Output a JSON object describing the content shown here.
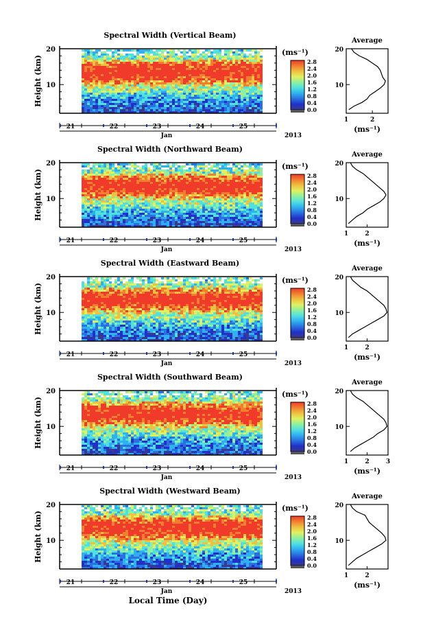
{
  "figure": {
    "x_axis_title": "Local Time (Day)",
    "month_label": "Jan",
    "year_label": "2013",
    "unit_label": "(ms⁻¹)",
    "colorbar_ticks": [
      "0.0",
      "0.4",
      "0.8",
      "1.2",
      "1.6",
      "2.0",
      "2.4",
      "2.8"
    ],
    "avg_title": "Average",
    "avg_xlabel": "(ms⁻¹)",
    "ylabel": "Height (km)",
    "colormap": [
      "#3a3a8c",
      "#2030c8",
      "#2a70e0",
      "#30b0f0",
      "#50e0e0",
      "#90f0a0",
      "#e0f060",
      "#f0c040",
      "#f08030",
      "#f03a2a"
    ]
  },
  "chart_data": [
    {
      "type": "heatmap",
      "title": "Spectral Width (Vertical Beam)",
      "ylabel": "Height (km)",
      "x_ticks": [
        "21",
        "22",
        "23",
        "24",
        "25"
      ],
      "y_ticks": [
        "10",
        "20"
      ],
      "ylim": [
        2,
        20
      ],
      "clim": [
        0,
        2.8
      ],
      "average": {
        "title": "Average",
        "xlabel": "(ms⁻¹)",
        "x_ticks": [
          "1",
          "2"
        ],
        "xlim": [
          1,
          2.6
        ],
        "height": [
          3,
          4,
          5,
          6,
          7,
          8,
          9,
          10,
          11,
          12,
          13,
          14,
          15,
          16,
          17,
          18,
          19,
          20
        ],
        "value": [
          1.1,
          1.3,
          1.6,
          1.8,
          1.9,
          2.1,
          2.3,
          2.45,
          2.5,
          2.4,
          2.35,
          2.3,
          2.2,
          2.0,
          1.8,
          1.5,
          1.3,
          1.2
        ]
      }
    },
    {
      "type": "heatmap",
      "title": "Spectral Width (Northward Beam)",
      "ylabel": "Height (km)",
      "x_ticks": [
        "21",
        "22",
        "23",
        "24",
        "25"
      ],
      "y_ticks": [
        "10",
        "20"
      ],
      "ylim": [
        2,
        20
      ],
      "clim": [
        0,
        2.8
      ],
      "average": {
        "title": "Average",
        "xlabel": "(ms⁻¹)",
        "x_ticks": [
          "1",
          "2"
        ],
        "xlim": [
          1,
          3
        ],
        "height": [
          3,
          4,
          5,
          6,
          7,
          8,
          9,
          10,
          11,
          12,
          13,
          14,
          15,
          16,
          17,
          18,
          19,
          20
        ],
        "value": [
          1.1,
          1.3,
          1.5,
          1.8,
          2.0,
          2.3,
          2.6,
          2.8,
          2.9,
          2.8,
          2.6,
          2.4,
          2.2,
          2.0,
          1.8,
          1.5,
          1.3,
          1.2
        ]
      }
    },
    {
      "type": "heatmap",
      "title": "Spectral Width (Eastward Beam)",
      "ylabel": "Height (km)",
      "x_ticks": [
        "21",
        "22",
        "23",
        "24",
        "25"
      ],
      "y_ticks": [
        "10",
        "20"
      ],
      "ylim": [
        2,
        20
      ],
      "clim": [
        0,
        2.8
      ],
      "average": {
        "title": "Average",
        "xlabel": "(ms⁻¹)",
        "x_ticks": [
          "1",
          "2"
        ],
        "xlim": [
          1,
          3
        ],
        "height": [
          3,
          4,
          5,
          6,
          7,
          8,
          9,
          10,
          11,
          12,
          13,
          14,
          15,
          16,
          17,
          18,
          19,
          20
        ],
        "value": [
          1.1,
          1.3,
          1.6,
          1.9,
          2.2,
          2.5,
          2.8,
          2.95,
          2.9,
          2.8,
          2.6,
          2.4,
          2.2,
          2.0,
          1.7,
          1.5,
          1.3,
          1.2
        ]
      }
    },
    {
      "type": "heatmap",
      "title": "Spectral Width (Southward Beam)",
      "ylabel": "Height (km)",
      "x_ticks": [
        "21",
        "22",
        "23",
        "24",
        "25"
      ],
      "y_ticks": [
        "10",
        "20"
      ],
      "ylim": [
        2,
        20
      ],
      "clim": [
        0,
        2.8
      ],
      "average": {
        "title": "Average",
        "xlabel": "(ms⁻¹)",
        "x_ticks": [
          "1",
          "2",
          "3"
        ],
        "xlim": [
          1,
          3
        ],
        "height": [
          3,
          4,
          5,
          6,
          7,
          8,
          9,
          10,
          11,
          12,
          13,
          14,
          15,
          16,
          17,
          18,
          19,
          20
        ],
        "value": [
          1.2,
          1.4,
          1.7,
          2.0,
          2.3,
          2.5,
          2.8,
          2.95,
          2.9,
          2.8,
          2.6,
          2.4,
          2.2,
          2.0,
          1.8,
          1.5,
          1.3,
          1.2
        ]
      }
    },
    {
      "type": "heatmap",
      "title": "Spectral Width (Westward Beam)",
      "ylabel": "Height (km)",
      "x_ticks": [
        "21",
        "22",
        "23",
        "24",
        "25"
      ],
      "y_ticks": [
        "10",
        "20"
      ],
      "ylim": [
        2,
        20
      ],
      "clim": [
        0,
        2.8
      ],
      "average": {
        "title": "Average",
        "xlabel": "(ms⁻¹)",
        "x_ticks": [
          "1",
          "2"
        ],
        "xlim": [
          1,
          3
        ],
        "height": [
          3,
          4,
          5,
          6,
          7,
          8,
          9,
          10,
          11,
          12,
          13,
          14,
          15,
          16,
          17,
          18,
          19,
          20
        ],
        "value": [
          1.1,
          1.3,
          1.5,
          1.8,
          2.1,
          2.4,
          2.7,
          2.9,
          2.85,
          2.7,
          2.5,
          2.3,
          2.1,
          2.0,
          1.9,
          1.5,
          1.3,
          1.2
        ]
      }
    }
  ]
}
